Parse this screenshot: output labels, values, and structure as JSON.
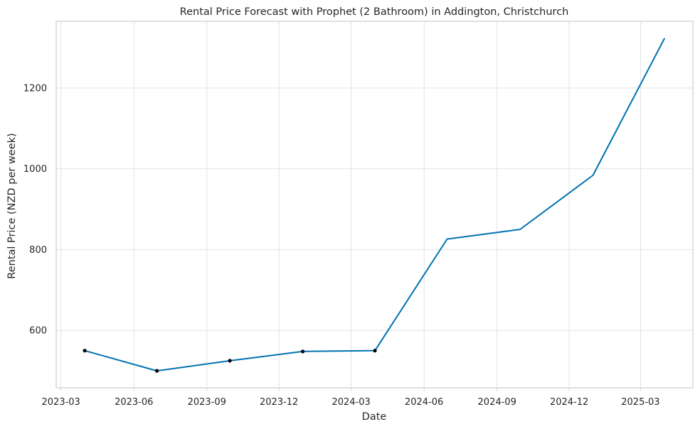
{
  "chart_data": {
    "type": "line",
    "title": "Rental Price Forecast with Prophet (2 Bathroom) in Addington, Christchurch",
    "xlabel": "Date",
    "ylabel": "Rental Price (NZD per week)",
    "xlim": [
      "2023-02-23",
      "2025-05-06"
    ],
    "ylim": [
      458,
      1365
    ],
    "x_ticks": [
      "2023-03",
      "2023-06",
      "2023-09",
      "2023-12",
      "2024-03",
      "2024-06",
      "2024-09",
      "2024-12",
      "2025-03"
    ],
    "y_ticks": [
      600,
      800,
      1000,
      1200
    ],
    "grid": true,
    "series": [
      {
        "name": "",
        "color": "#0072b2",
        "x": [
          "2023-03-31",
          "2023-06-30",
          "2023-09-30",
          "2023-12-31",
          "2024-03-31",
          "2024-06-30",
          "2024-09-30",
          "2024-12-31",
          "2025-03-31"
        ],
        "y": [
          550,
          500,
          525,
          548,
          550,
          826,
          850,
          984,
          1322
        ]
      }
    ],
    "observed_points": {
      "color": "#000000",
      "x": [
        "2023-03-31",
        "2023-06-30",
        "2023-09-30",
        "2023-12-31",
        "2024-03-31"
      ],
      "y": [
        550,
        500,
        525,
        548,
        550
      ]
    }
  }
}
